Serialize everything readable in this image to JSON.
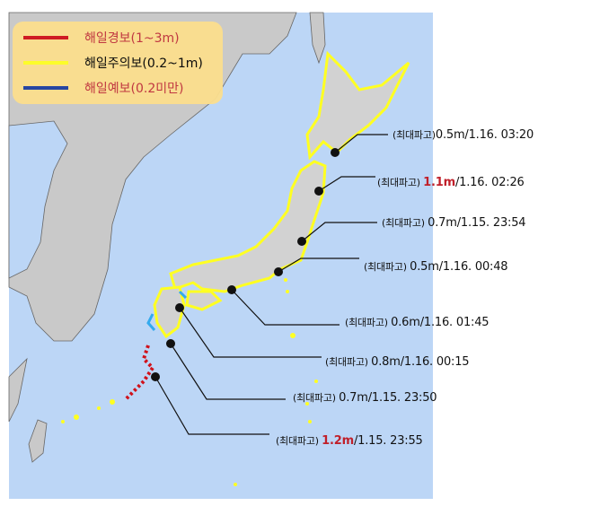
{
  "legend": [
    {
      "label": "해일경보(1~3m)",
      "color": "#d0121b",
      "text_color": "#c0303a"
    },
    {
      "label": "해일주의보(0.2~1m)",
      "color": "#ffff22",
      "text_color": "#111111"
    },
    {
      "label": "해일예보(0.2미만)",
      "color": "#1f3fa0",
      "text_color": "#c0303a"
    }
  ],
  "annotations": [
    {
      "prefix": "(최대파고)",
      "height": "0.5m",
      "time": "/1.16. 03:20",
      "highlight": false
    },
    {
      "prefix": "(최대파고) ",
      "height": "1.1m",
      "time": "/1.16. 02:26",
      "highlight": true
    },
    {
      "prefix": "(최대파고) ",
      "height": "0.7m",
      "time": "/1.15. 23:54",
      "highlight": false
    },
    {
      "prefix": "(최대파고) ",
      "height": "0.5m",
      "time": "/1.16. 00:48",
      "highlight": false
    },
    {
      "prefix": "(최대파고) ",
      "height": "0.6m",
      "time": "/1.16. 01:45",
      "highlight": false
    },
    {
      "prefix": "(최대파고) ",
      "height": "0.8m",
      "time": "/1.16. 00:15",
      "highlight": false
    },
    {
      "prefix": "(최대파고) ",
      "height": "0.7m",
      "time": "/1.15. 23:50",
      "highlight": false
    },
    {
      "prefix": "(최대파고) ",
      "height": "1.2m",
      "time": "/1.15. 23:55",
      "highlight": true
    }
  ],
  "colors": {
    "sea": "#bcd6f6",
    "land": "#c9c9c9",
    "japan": "#d2d2d2",
    "warning": "#d0121b",
    "advisory": "#ffff22",
    "forecast": "#33aaee"
  }
}
